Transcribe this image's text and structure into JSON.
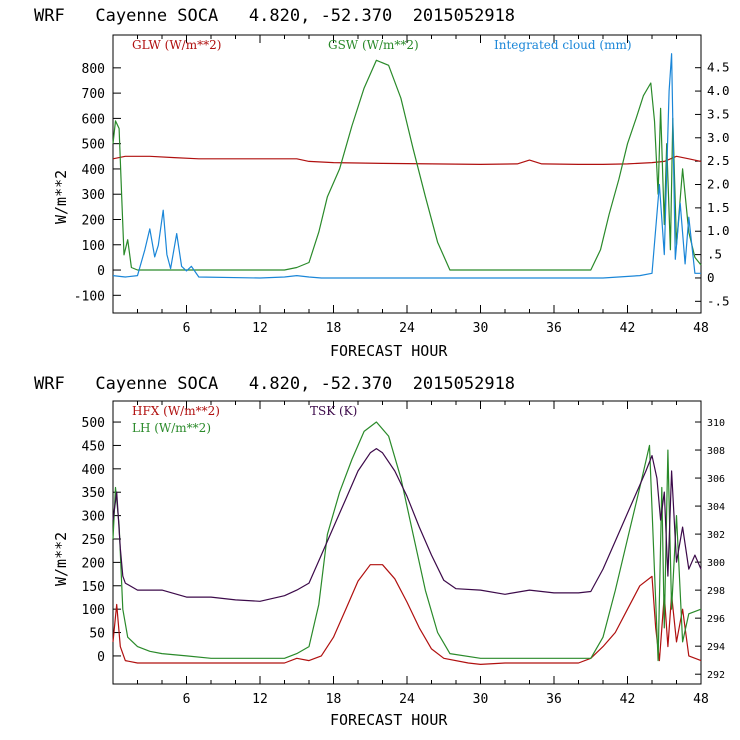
{
  "colors": {
    "red": "#b0100f",
    "green": "#2a8a2a",
    "blue": "#1a86d8",
    "purple": "#3c0a4a",
    "axis": "#000000"
  },
  "chart_data": [
    {
      "type": "line",
      "title": "WRF   Cayenne SOCA   4.820, -52.370  2015052918",
      "xlabel": "FORECAST HOUR",
      "ylabel": "W/m**2",
      "xlim": [
        0,
        48
      ],
      "ylim": [
        -170,
        930
      ],
      "xticks": [
        6,
        12,
        18,
        24,
        30,
        36,
        42,
        48
      ],
      "yticks": [
        -100,
        0,
        100,
        200,
        300,
        400,
        500,
        600,
        700,
        800
      ],
      "right_axis": {
        "label": "Integrated cloud (mm)",
        "ylim": [
          -0.75,
          5.2
        ],
        "ticks": [
          "-.5",
          "0",
          ".5",
          "1.0",
          "1.5",
          "2.0",
          "2.5",
          "3.0",
          "3.5",
          "4.0",
          "4.5"
        ]
      },
      "series": [
        {
          "name": "GLW (W/m**2)",
          "color_key": "red",
          "axis": "left",
          "points": [
            [
              0,
              440
            ],
            [
              1,
              450
            ],
            [
              3,
              450
            ],
            [
              5,
              445
            ],
            [
              7,
              440
            ],
            [
              10,
              440
            ],
            [
              12,
              440
            ],
            [
              14,
              440
            ],
            [
              15,
              440
            ],
            [
              16,
              430
            ],
            [
              18,
              425
            ],
            [
              22,
              422
            ],
            [
              26,
              420
            ],
            [
              30,
              418
            ],
            [
              33,
              420
            ],
            [
              34,
              435
            ],
            [
              35,
              420
            ],
            [
              38,
              418
            ],
            [
              40,
              418
            ],
            [
              42,
              420
            ],
            [
              44,
              425
            ],
            [
              45,
              430
            ],
            [
              46,
              450
            ],
            [
              47,
              440
            ],
            [
              48,
              430
            ]
          ]
        },
        {
          "name": "GSW (W/m**2)",
          "color_key": "green",
          "axis": "left",
          "points": [
            [
              0,
              500
            ],
            [
              0.2,
              590
            ],
            [
              0.5,
              560
            ],
            [
              0.7,
              300
            ],
            [
              0.9,
              60
            ],
            [
              1.2,
              120
            ],
            [
              1.5,
              10
            ],
            [
              2,
              0
            ],
            [
              12,
              0
            ],
            [
              14,
              0
            ],
            [
              15,
              10
            ],
            [
              16,
              30
            ],
            [
              16.8,
              150
            ],
            [
              17.5,
              290
            ],
            [
              18.5,
              400
            ],
            [
              19.5,
              570
            ],
            [
              20.5,
              720
            ],
            [
              21.5,
              830
            ],
            [
              22.5,
              810
            ],
            [
              23.5,
              680
            ],
            [
              24.5,
              480
            ],
            [
              25.5,
              290
            ],
            [
              26.5,
              110
            ],
            [
              27.5,
              0
            ],
            [
              39,
              0
            ],
            [
              39.8,
              80
            ],
            [
              40.5,
              220
            ],
            [
              41.3,
              360
            ],
            [
              42,
              500
            ],
            [
              42.7,
              600
            ],
            [
              43.3,
              690
            ],
            [
              43.9,
              740
            ],
            [
              44.2,
              590
            ],
            [
              44.5,
              300
            ],
            [
              44.7,
              640
            ],
            [
              45.0,
              180
            ],
            [
              45.2,
              500
            ],
            [
              45.5,
              80
            ],
            [
              45.7,
              600
            ],
            [
              46.0,
              100
            ],
            [
              46.5,
              400
            ],
            [
              47,
              150
            ],
            [
              47.5,
              50
            ],
            [
              48,
              20
            ]
          ]
        },
        {
          "name": "Integrated cloud (mm)",
          "color_key": "blue",
          "axis": "right",
          "points": [
            [
              0,
              0.05
            ],
            [
              1,
              0.02
            ],
            [
              2,
              0.05
            ],
            [
              2.6,
              0.6
            ],
            [
              3.0,
              1.05
            ],
            [
              3.4,
              0.45
            ],
            [
              3.7,
              0.7
            ],
            [
              4.1,
              1.45
            ],
            [
              4.4,
              0.5
            ],
            [
              4.7,
              0.2
            ],
            [
              5.2,
              0.95
            ],
            [
              5.6,
              0.25
            ],
            [
              6,
              0.15
            ],
            [
              6.4,
              0.25
            ],
            [
              7,
              0.02
            ],
            [
              12,
              0.0
            ],
            [
              14,
              0.02
            ],
            [
              15,
              0.05
            ],
            [
              16,
              0.02
            ],
            [
              17,
              0.0
            ],
            [
              24,
              0.0
            ],
            [
              30,
              0.0
            ],
            [
              36,
              0.0
            ],
            [
              40,
              0.0
            ],
            [
              43,
              0.05
            ],
            [
              44,
              0.1
            ],
            [
              44.6,
              2.0
            ],
            [
              45.0,
              0.5
            ],
            [
              45.4,
              4.0
            ],
            [
              45.6,
              4.8
            ],
            [
              45.9,
              0.4
            ],
            [
              46.3,
              1.6
            ],
            [
              46.7,
              0.3
            ],
            [
              47,
              1.3
            ],
            [
              47.5,
              0.1
            ],
            [
              48,
              0.1
            ]
          ]
        }
      ]
    },
    {
      "type": "line",
      "title": "WRF   Cayenne SOCA   4.820, -52.370  2015052918",
      "xlabel": "FORECAST HOUR",
      "ylabel": "W/m**2",
      "xlim": [
        0,
        48
      ],
      "ylim": [
        -60,
        545
      ],
      "xticks": [
        6,
        12,
        18,
        24,
        30,
        36,
        42,
        48
      ],
      "yticks": [
        0,
        50,
        100,
        150,
        200,
        250,
        300,
        350,
        400,
        450,
        500
      ],
      "right_axis": {
        "label": "TSK (K)",
        "ylim": [
          291.3,
          311.5
        ],
        "ticks": [
          "292",
          "294",
          "296",
          "298",
          "300",
          "302",
          "304",
          "306",
          "308",
          "310"
        ]
      },
      "series": [
        {
          "name": "HFX (W/m**2)",
          "color_key": "red",
          "axis": "left",
          "points": [
            [
              0,
              30
            ],
            [
              0.3,
              110
            ],
            [
              0.6,
              20
            ],
            [
              1,
              -10
            ],
            [
              2,
              -15
            ],
            [
              4,
              -15
            ],
            [
              8,
              -15
            ],
            [
              12,
              -15
            ],
            [
              14,
              -15
            ],
            [
              15,
              -5
            ],
            [
              16,
              -10
            ],
            [
              17,
              0
            ],
            [
              18,
              40
            ],
            [
              19,
              100
            ],
            [
              20,
              160
            ],
            [
              21,
              195
            ],
            [
              22,
              195
            ],
            [
              23,
              165
            ],
            [
              24,
              115
            ],
            [
              25,
              60
            ],
            [
              26,
              15
            ],
            [
              27,
              -5
            ],
            [
              29,
              -15
            ],
            [
              30,
              -18
            ],
            [
              32,
              -15
            ],
            [
              34,
              -15
            ],
            [
              36,
              -15
            ],
            [
              38,
              -15
            ],
            [
              39,
              -5
            ],
            [
              40,
              20
            ],
            [
              41,
              50
            ],
            [
              42,
              100
            ],
            [
              43,
              150
            ],
            [
              44,
              170
            ],
            [
              44.3,
              60
            ],
            [
              44.6,
              -10
            ],
            [
              45,
              130
            ],
            [
              45.3,
              20
            ],
            [
              45.6,
              130
            ],
            [
              46,
              30
            ],
            [
              46.5,
              100
            ],
            [
              47,
              0
            ],
            [
              48,
              -10
            ]
          ]
        },
        {
          "name": "LH (W/m**2)",
          "color_key": "green",
          "axis": "left",
          "points": [
            [
              0,
              250
            ],
            [
              0.2,
              360
            ],
            [
              0.5,
              280
            ],
            [
              0.8,
              100
            ],
            [
              1.2,
              40
            ],
            [
              2,
              20
            ],
            [
              3,
              10
            ],
            [
              4,
              5
            ],
            [
              6,
              0
            ],
            [
              8,
              -5
            ],
            [
              12,
              -5
            ],
            [
              14,
              -5
            ],
            [
              15,
              5
            ],
            [
              16,
              20
            ],
            [
              16.8,
              110
            ],
            [
              17.5,
              260
            ],
            [
              18.5,
              350
            ],
            [
              19.5,
              420
            ],
            [
              20.5,
              480
            ],
            [
              21.5,
              500
            ],
            [
              22.5,
              470
            ],
            [
              23.5,
              380
            ],
            [
              24.5,
              260
            ],
            [
              25.5,
              140
            ],
            [
              26.5,
              50
            ],
            [
              27.5,
              5
            ],
            [
              30,
              -5
            ],
            [
              36,
              -5
            ],
            [
              39,
              -5
            ],
            [
              40,
              40
            ],
            [
              41,
              140
            ],
            [
              42,
              250
            ],
            [
              43,
              360
            ],
            [
              43.8,
              450
            ],
            [
              44.2,
              180
            ],
            [
              44.5,
              -10
            ],
            [
              44.8,
              360
            ],
            [
              45.0,
              60
            ],
            [
              45.3,
              440
            ],
            [
              45.6,
              100
            ],
            [
              46.0,
              300
            ],
            [
              46.5,
              30
            ],
            [
              47,
              90
            ],
            [
              48,
              100
            ]
          ]
        },
        {
          "name": "TSK (K)",
          "color_key": "purple",
          "axis": "right",
          "points": [
            [
              0,
              303
            ],
            [
              0.3,
              305
            ],
            [
              0.6,
              301
            ],
            [
              0.8,
              299
            ],
            [
              1,
              298.5
            ],
            [
              2,
              298
            ],
            [
              4,
              298
            ],
            [
              6,
              297.5
            ],
            [
              8,
              297.5
            ],
            [
              10,
              297.3
            ],
            [
              12,
              297.2
            ],
            [
              14,
              297.6
            ],
            [
              15,
              298.0
            ],
            [
              16,
              298.5
            ],
            [
              17,
              300.5
            ],
            [
              18,
              302.5
            ],
            [
              19,
              304.5
            ],
            [
              20,
              306.5
            ],
            [
              21,
              307.8
            ],
            [
              21.5,
              308.1
            ],
            [
              22,
              307.8
            ],
            [
              23,
              306.5
            ],
            [
              24,
              304.7
            ],
            [
              25,
              302.5
            ],
            [
              26,
              300.5
            ],
            [
              27,
              298.7
            ],
            [
              28,
              298.1
            ],
            [
              30,
              298.0
            ],
            [
              32,
              297.7
            ],
            [
              34,
              298.0
            ],
            [
              36,
              297.8
            ],
            [
              38,
              297.8
            ],
            [
              39,
              297.9
            ],
            [
              40,
              299.5
            ],
            [
              41,
              301.5
            ],
            [
              42,
              303.5
            ],
            [
              43,
              305.5
            ],
            [
              43.5,
              306.5
            ],
            [
              44,
              307.6
            ],
            [
              44.4,
              306.0
            ],
            [
              44.7,
              303.0
            ],
            [
              45,
              305.0
            ],
            [
              45.3,
              299.0
            ],
            [
              45.6,
              306.5
            ],
            [
              46,
              300.0
            ],
            [
              46.5,
              302.5
            ],
            [
              47,
              299.5
            ],
            [
              47.5,
              300.5
            ],
            [
              48,
              299.5
            ]
          ]
        }
      ]
    }
  ]
}
